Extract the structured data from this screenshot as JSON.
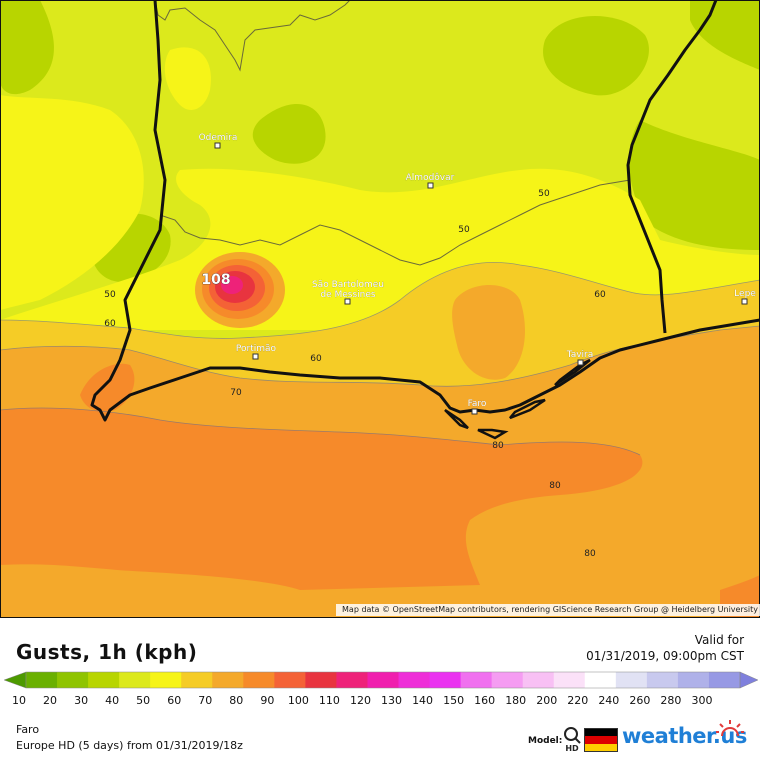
{
  "map": {
    "attribution": "Map data © OpenStreetMap contributors, rendering GIScience Research Group @ Heidelberg University",
    "peak_label": "108",
    "cities": [
      {
        "name": "Odemira"
      },
      {
        "name": "Almodôvar"
      },
      {
        "name": "São Bartolomeu"
      },
      {
        "name": "de Messines"
      },
      {
        "name": "Portimão"
      },
      {
        "name": "Tavira"
      },
      {
        "name": "Faro"
      },
      {
        "name": "Lepe"
      }
    ],
    "contour_labels": [
      "50",
      "50",
      "50",
      "60",
      "60",
      "60",
      "70",
      "80",
      "80",
      "80"
    ]
  },
  "panel": {
    "title": "Gusts, 1h (kph)",
    "valid_label": "Valid for",
    "valid_time": "01/31/2019, 09:00pm CST",
    "location": "Faro",
    "model_run": "Europe HD (5 days) from 01/31/2019/18z",
    "model_label": "Model:",
    "hd_label": "HD",
    "logo_text": "weather.us"
  },
  "legend": {
    "ticks": [
      "10",
      "20",
      "30",
      "40",
      "50",
      "60",
      "70",
      "80",
      "90",
      "100",
      "110",
      "120",
      "130",
      "140",
      "150",
      "160",
      "180",
      "200",
      "220",
      "240",
      "260",
      "280",
      "300"
    ],
    "colors": [
      "#4d9a00",
      "#6ab000",
      "#8fc400",
      "#b8d500",
      "#dce91c",
      "#f6f418",
      "#f5cc26",
      "#f4a92b",
      "#f68a2a",
      "#f46236",
      "#e8343f",
      "#ee2279",
      "#f01fae",
      "#ee2ed8",
      "#ea33f0",
      "#f070ef",
      "#f59cf2",
      "#f8c0f4",
      "#fbe1f8",
      "#ffffff",
      "#e1e2f4",
      "#c8c9ee",
      "#afb1e9",
      "#9799e4",
      "#7f80dd"
    ]
  }
}
